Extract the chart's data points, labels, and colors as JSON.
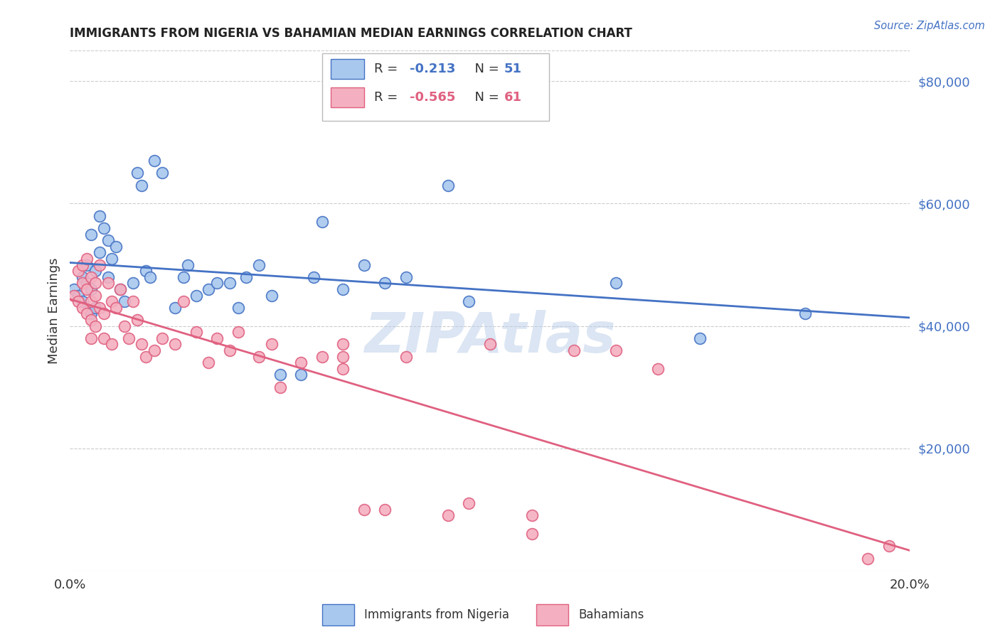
{
  "title": "IMMIGRANTS FROM NIGERIA VS BAHAMIAN MEDIAN EARNINGS CORRELATION CHART",
  "source": "Source: ZipAtlas.com",
  "ylabel": "Median Earnings",
  "xmin": 0.0,
  "xmax": 0.2,
  "ymin": 0,
  "ymax": 85000,
  "yticks": [
    20000,
    40000,
    60000,
    80000
  ],
  "ytick_labels": [
    "$20,000",
    "$40,000",
    "$60,000",
    "$80,000"
  ],
  "blue_color": "#a8c8ee",
  "pink_color": "#f4b0c0",
  "blue_line_color": "#4472c4",
  "pink_line_color": "#e06080",
  "bg_color": "#ffffff",
  "watermark": "ZIPAtlas",
  "legend_r1": "-0.213",
  "legend_n1": "51",
  "legend_r2": "-0.565",
  "legend_n2": "61",
  "nigeria_x": [
    0.001,
    0.002,
    0.003,
    0.003,
    0.004,
    0.004,
    0.005,
    0.005,
    0.005,
    0.006,
    0.006,
    0.007,
    0.007,
    0.008,
    0.009,
    0.009,
    0.01,
    0.011,
    0.012,
    0.013,
    0.015,
    0.016,
    0.017,
    0.018,
    0.019,
    0.02,
    0.022,
    0.025,
    0.027,
    0.028,
    0.03,
    0.033,
    0.035,
    0.038,
    0.04,
    0.042,
    0.045,
    0.048,
    0.05,
    0.055,
    0.058,
    0.06,
    0.065,
    0.07,
    0.075,
    0.08,
    0.09,
    0.095,
    0.13,
    0.15,
    0.175
  ],
  "nigeria_y": [
    46000,
    45000,
    48000,
    44000,
    47000,
    50000,
    46000,
    55000,
    42000,
    49000,
    43000,
    52000,
    58000,
    56000,
    54000,
    48000,
    51000,
    53000,
    46000,
    44000,
    47000,
    65000,
    63000,
    49000,
    48000,
    67000,
    65000,
    43000,
    48000,
    50000,
    45000,
    46000,
    47000,
    47000,
    43000,
    48000,
    50000,
    45000,
    32000,
    32000,
    48000,
    57000,
    46000,
    50000,
    47000,
    48000,
    63000,
    44000,
    47000,
    38000,
    42000
  ],
  "bahamian_x": [
    0.001,
    0.002,
    0.002,
    0.003,
    0.003,
    0.003,
    0.004,
    0.004,
    0.004,
    0.005,
    0.005,
    0.005,
    0.005,
    0.006,
    0.006,
    0.006,
    0.007,
    0.007,
    0.008,
    0.008,
    0.009,
    0.01,
    0.01,
    0.011,
    0.012,
    0.013,
    0.014,
    0.015,
    0.016,
    0.017,
    0.018,
    0.02,
    0.022,
    0.025,
    0.027,
    0.03,
    0.033,
    0.035,
    0.038,
    0.04,
    0.045,
    0.048,
    0.05,
    0.055,
    0.06,
    0.065,
    0.07,
    0.075,
    0.08,
    0.09,
    0.095,
    0.1,
    0.11,
    0.12,
    0.13,
    0.14,
    0.11,
    0.065,
    0.065,
    0.19,
    0.195
  ],
  "bahamian_y": [
    45000,
    49000,
    44000,
    50000,
    47000,
    43000,
    51000,
    46000,
    42000,
    48000,
    44000,
    41000,
    38000,
    47000,
    45000,
    40000,
    50000,
    43000,
    42000,
    38000,
    47000,
    44000,
    37000,
    43000,
    46000,
    40000,
    38000,
    44000,
    41000,
    37000,
    35000,
    36000,
    38000,
    37000,
    44000,
    39000,
    34000,
    38000,
    36000,
    39000,
    35000,
    37000,
    30000,
    34000,
    35000,
    37000,
    10000,
    10000,
    35000,
    9000,
    11000,
    37000,
    6000,
    36000,
    36000,
    33000,
    9000,
    35000,
    33000,
    2000,
    4000
  ]
}
